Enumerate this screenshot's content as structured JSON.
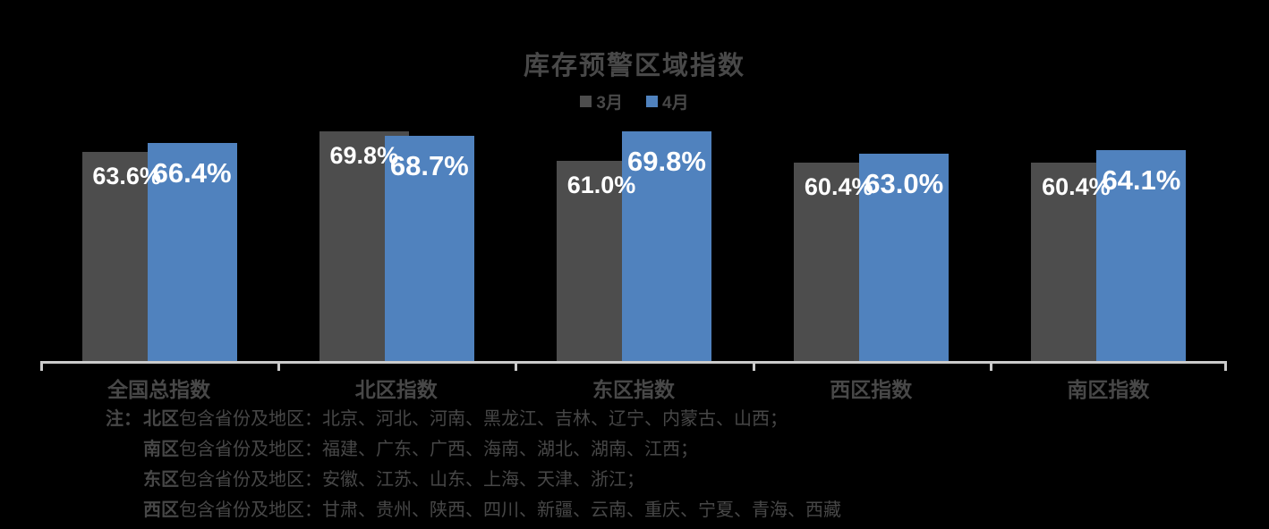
{
  "page": {
    "background": "#000000",
    "text_color": "#484848"
  },
  "chart_data": {
    "type": "bar",
    "title": "库存预警区域指数",
    "categories": [
      "全国总指数",
      "北区指数",
      "东区指数",
      "西区指数",
      "南区指数"
    ],
    "series": [
      {
        "name": "3月",
        "color": "#4D4D4D",
        "values": [
          63.6,
          69.8,
          61.0,
          60.4,
          60.4
        ],
        "labels": [
          "63.6%",
          "69.8%",
          "61.0%",
          "60.4%",
          "60.4%"
        ]
      },
      {
        "name": "4月",
        "color": "#5082BE",
        "values": [
          66.4,
          68.7,
          69.8,
          63.0,
          64.1
        ],
        "labels": [
          "66.4%",
          "68.7%",
          "69.8%",
          "63.0%",
          "64.1%"
        ]
      }
    ],
    "ylim": [
      0,
      72
    ],
    "grid": false,
    "legend_position": "top-center",
    "value_label_color": "#FFFFFF",
    "axis_line_color": "#CBCBCB",
    "bar_overlap": true
  },
  "notes": {
    "prefix": "注：",
    "lines": [
      {
        "region": "北区",
        "text": "包含省份及地区：北京、河北、河南、黑龙江、吉林、辽宁、内蒙古、山西；"
      },
      {
        "region": "南区",
        "text": "包含省份及地区：福建、广东、广西、海南、湖北、湖南、江西；"
      },
      {
        "region": "东区",
        "text": "包含省份及地区：安徽、江苏、山东、上海、天津、浙江；"
      },
      {
        "region": "西区",
        "text": "包含省份及地区：甘肃、贵州、陕西、四川、新疆、云南、重庆、宁夏、青海、西藏"
      }
    ]
  }
}
